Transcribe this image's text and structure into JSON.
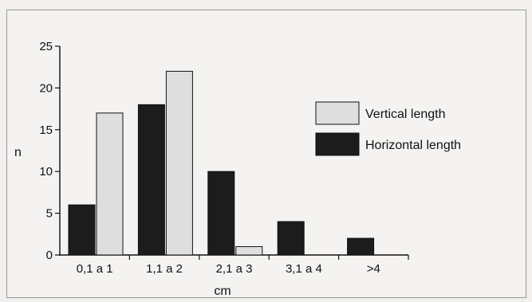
{
  "chart_data": {
    "type": "bar",
    "title": "",
    "xlabel": "cm",
    "ylabel": "n",
    "categories": [
      "0,1 a 1",
      "1,1 a 2",
      "2,1 a 3",
      "3,1 a 4",
      ">4"
    ],
    "series": [
      {
        "name": "Horizontal length",
        "values": [
          6,
          18,
          10,
          4,
          2
        ],
        "color": "#1c1c1c"
      },
      {
        "name": "Vertical length",
        "values": [
          17,
          22,
          1,
          0,
          0
        ],
        "color": "#dedede"
      }
    ],
    "ylim": [
      0,
      25
    ],
    "yticks": [
      0,
      5,
      10,
      15,
      20,
      25
    ],
    "grid": false,
    "legend_position": "right",
    "legend_order": [
      "Vertical length",
      "Horizontal length"
    ]
  }
}
